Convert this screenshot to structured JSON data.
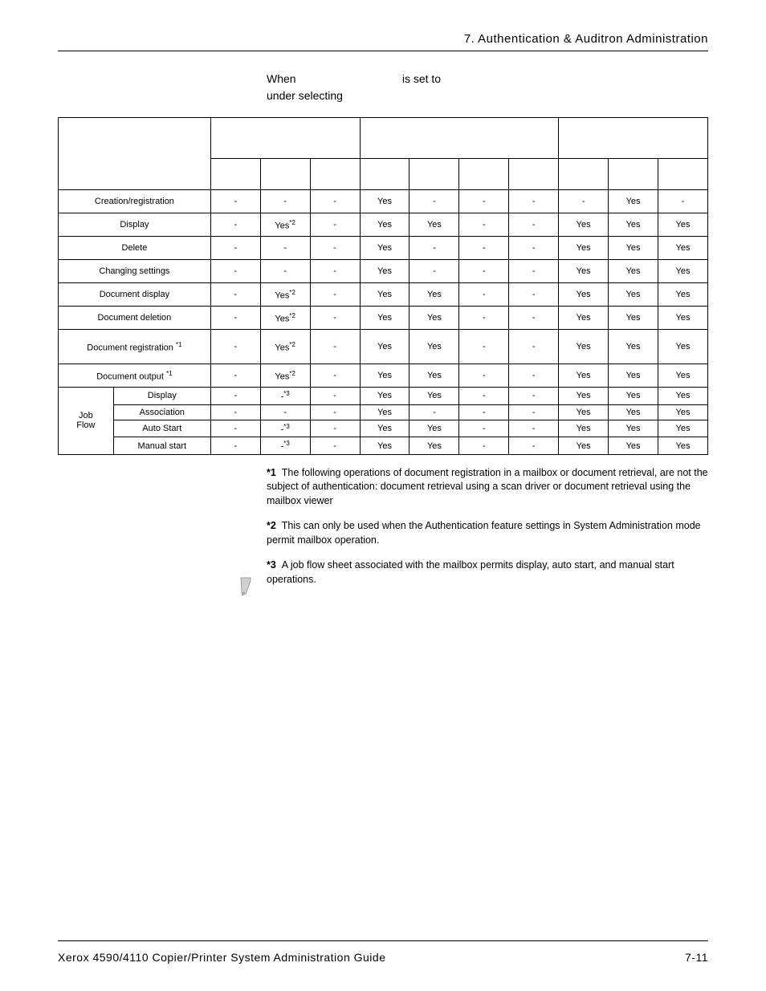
{
  "chapter_header": "7. Authentication & Auditron Administration",
  "intro": {
    "line1_a": "When ",
    "line1_b": " is set to ",
    "line2_a": "under selecting "
  },
  "table": {
    "group_w": [
      138,
      45,
      45,
      45
    ],
    "top_span": [
      3,
      4,
      3
    ],
    "rows": [
      {
        "label": "Creation/registration",
        "cells": [
          "-",
          "-",
          "-",
          "Yes",
          "-",
          "-",
          "-",
          "-",
          "Yes",
          "-"
        ]
      },
      {
        "label": "Display",
        "cells": [
          "-",
          "Yes*2",
          "-",
          "Yes",
          "Yes",
          "-",
          "-",
          "Yes",
          "Yes",
          "Yes"
        ]
      },
      {
        "label": "Delete",
        "cells": [
          "-",
          "-",
          "-",
          "Yes",
          "-",
          "-",
          "-",
          "Yes",
          "Yes",
          "Yes"
        ]
      },
      {
        "label": "Changing settings",
        "cells": [
          "-",
          "-",
          "-",
          "Yes",
          "-",
          "-",
          "-",
          "Yes",
          "Yes",
          "Yes"
        ]
      },
      {
        "label": "Document display",
        "cells": [
          "-",
          "Yes*2",
          "-",
          "Yes",
          "Yes",
          "-",
          "-",
          "Yes",
          "Yes",
          "Yes"
        ]
      },
      {
        "label": "Document deletion",
        "cells": [
          "-",
          "Yes*2",
          "-",
          "Yes",
          "Yes",
          "-",
          "-",
          "Yes",
          "Yes",
          "Yes"
        ]
      },
      {
        "label": "Document registration *1",
        "cells": [
          "-",
          "Yes*2",
          "-",
          "Yes",
          "Yes",
          "-",
          "-",
          "Yes",
          "Yes",
          "Yes"
        ],
        "tall": true
      },
      {
        "label": "Document output *1",
        "cells": [
          "-",
          "Yes*2",
          "-",
          "Yes",
          "Yes",
          "-",
          "-",
          "Yes",
          "Yes",
          "Yes"
        ],
        "sup_in_label": true
      }
    ],
    "rowspan_label": "Job Flow",
    "sub_rows": [
      {
        "label": "Display",
        "cells": [
          "-",
          "-*3",
          "-",
          "Yes",
          "Yes",
          "-",
          "-",
          "Yes",
          "Yes",
          "Yes"
        ]
      },
      {
        "label": "Association",
        "cells": [
          "-",
          "-",
          "-",
          "Yes",
          "-",
          "-",
          "-",
          "Yes",
          "Yes",
          "Yes"
        ]
      },
      {
        "label": "Auto Start",
        "cells": [
          "-",
          "-*3",
          "-",
          "Yes",
          "Yes",
          "-",
          "-",
          "Yes",
          "Yes",
          "Yes"
        ]
      },
      {
        "label": "Manual start",
        "cells": [
          "-",
          "-*3",
          "-",
          "Yes",
          "Yes",
          "-",
          "-",
          "Yes",
          "Yes",
          "Yes"
        ]
      }
    ]
  },
  "footnotes": [
    {
      "mark": "*1",
      "text": "The following operations of document registration in a mailbox or document retrieval, are not the subject of authentication: document retrieval using a scan driver or document retrieval using the mailbox viewer"
    },
    {
      "mark": "*2",
      "text": "This can only be used when the Authentication feature settings in System Administration mode permit mailbox operation."
    },
    {
      "mark": "*3",
      "text": "A job flow sheet associated with the mailbox permits display, auto start, and manual start operations."
    }
  ],
  "footer": {
    "left": "Xerox 4590/4110 Copier/Printer System Administration Guide",
    "right": "7-11"
  }
}
